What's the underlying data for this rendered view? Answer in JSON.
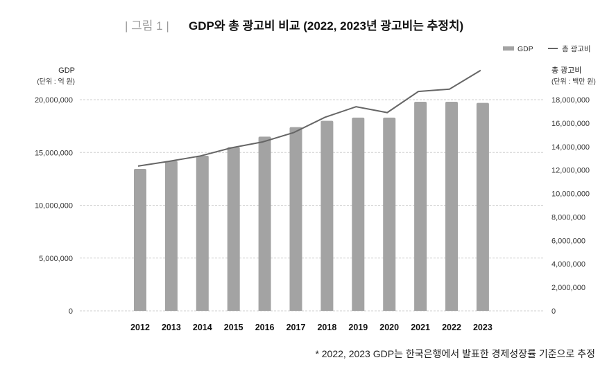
{
  "chart_data": {
    "type": "bar+line",
    "figure_label": "| 그림 1 |",
    "title": "GDP와 총 광고비 비교 (2022, 2023년 광고비는 추정치)",
    "categories": [
      "2012",
      "2013",
      "2014",
      "2015",
      "2016",
      "2017",
      "2018",
      "2019",
      "2020",
      "2021",
      "2022",
      "2023"
    ],
    "series": [
      {
        "name": "GDP",
        "type": "bar",
        "axis": "left",
        "color": "#a3a3a3",
        "values": [
          13440000,
          14200000,
          14700000,
          15500000,
          16500000,
          17400000,
          18000000,
          18300000,
          18300000,
          19800000,
          19800000,
          19700000
        ]
      },
      {
        "name": "총 광고비",
        "type": "line",
        "axis": "right",
        "color": "#666666",
        "values": [
          12340000,
          12750000,
          13200000,
          13900000,
          14400000,
          15200000,
          16500000,
          17400000,
          16900000,
          18700000,
          18900000,
          20500000
        ]
      }
    ],
    "left_axis": {
      "label": "GDP",
      "unit": "(단위 : 억 원)",
      "range": [
        0,
        20000000
      ],
      "ticks": [
        "0",
        "5,000,000",
        "10,000,000",
        "15,000,000",
        "20,000,000"
      ],
      "tick_values": [
        0,
        5000000,
        10000000,
        15000000,
        20000000
      ]
    },
    "right_axis": {
      "label": "총 광고비",
      "unit": "(단위 : 백만 원)",
      "range": [
        0,
        18000000
      ],
      "ticks": [
        "0",
        "2,000,000",
        "4,000,000",
        "6,000,000",
        "8,000,000",
        "10,000,000",
        "12,000,000",
        "14,000,000",
        "16,000,000",
        "18,000,000"
      ],
      "tick_values": [
        0,
        2000000,
        4000000,
        6000000,
        8000000,
        10000000,
        12000000,
        14000000,
        16000000,
        18000000
      ]
    },
    "grid": true,
    "legend_position": "top-right",
    "note": "* 2022, 2023 GDP는 한국은행에서 발표한 경제성장률 기준으로 추정"
  }
}
